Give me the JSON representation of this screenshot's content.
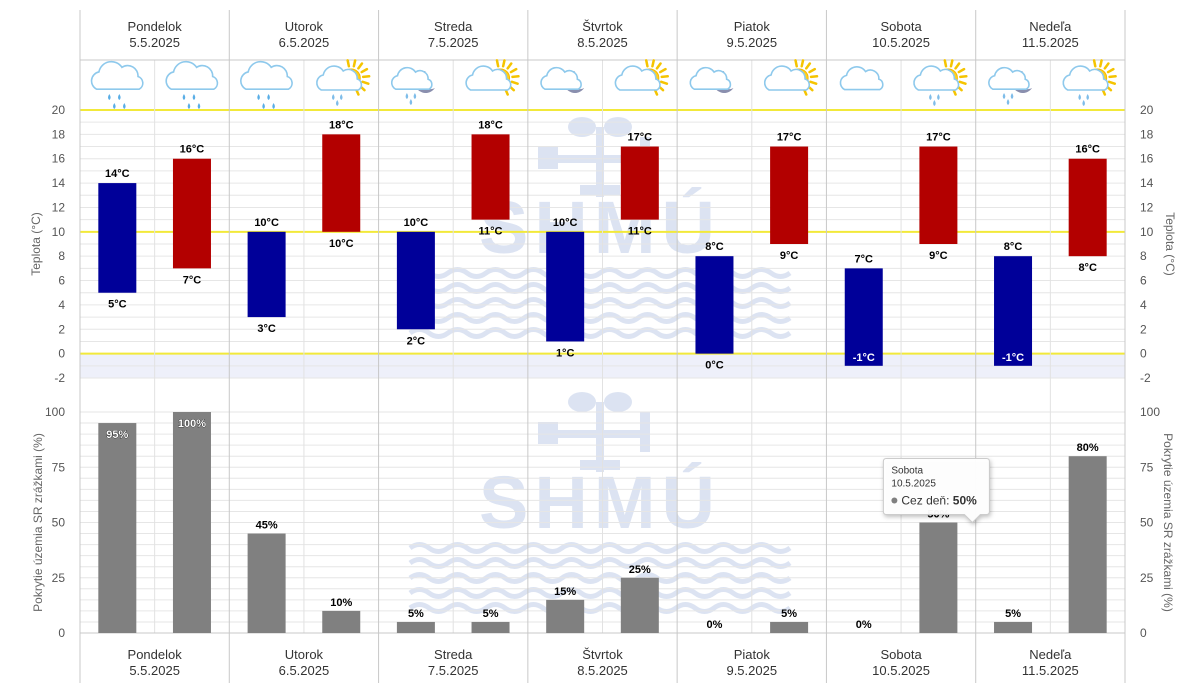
{
  "days": [
    {
      "name": "Pondelok",
      "date": "5.5.2025",
      "icon_night": "rain-cloud-icon",
      "icon_day": "rain-cloud-icon"
    },
    {
      "name": "Utorok",
      "date": "6.5.2025",
      "icon_night": "rain-cloud-icon",
      "icon_day": "sun-cloud-rain-icon"
    },
    {
      "name": "Streda",
      "date": "7.5.2025",
      "icon_night": "moon-cloud-rain-icon",
      "icon_day": "sun-cloud-icon"
    },
    {
      "name": "Štvrtok",
      "date": "8.5.2025",
      "icon_night": "moon-cloud-icon",
      "icon_day": "sun-cloud-icon"
    },
    {
      "name": "Piatok",
      "date": "9.5.2025",
      "icon_night": "moon-cloud-icon",
      "icon_day": "sun-cloud-icon"
    },
    {
      "name": "Sobota",
      "date": "10.5.2025",
      "icon_night": "cloud-icon",
      "icon_day": "sun-cloud-rain-icon"
    },
    {
      "name": "Nedeľa",
      "date": "11.5.2025",
      "icon_night": "moon-cloud-rain-icon",
      "icon_day": "sun-cloud-rain-icon"
    }
  ],
  "watermark": "SHMÚ",
  "colors": {
    "night_bar": "#000099",
    "day_bar": "#b30000",
    "precip_bar": "#808080",
    "yellow_line": "#f2e93a",
    "below_zero_band": "#eef0fa",
    "watermark": "#d6dff0",
    "grid": "#e6e6e6",
    "separator": "#c8c8c8"
  },
  "chart_data": [
    {
      "type": "bar",
      "name": "temperature",
      "ylabel": "Teplota (°C)",
      "ylim": [
        -2,
        20
      ],
      "yticks": [
        -2,
        0,
        2,
        4,
        6,
        8,
        10,
        12,
        14,
        16,
        18,
        20
      ],
      "highlight_lines": [
        0,
        10,
        20
      ],
      "unit": "°C",
      "series": [
        {
          "name": "night",
          "ranges": [
            [
              5,
              14
            ],
            [
              3,
              10
            ],
            [
              2,
              10
            ],
            [
              1,
              10
            ],
            [
              0,
              8
            ],
            [
              -1,
              7
            ],
            [
              -1,
              8
            ]
          ]
        },
        {
          "name": "day",
          "ranges": [
            [
              7,
              16
            ],
            [
              10,
              18
            ],
            [
              11,
              18
            ],
            [
              11,
              17
            ],
            [
              9,
              17
            ],
            [
              9,
              17
            ],
            [
              8,
              16
            ]
          ]
        }
      ]
    },
    {
      "type": "bar",
      "name": "precipitation",
      "ylabel": "Pokrytie územia SR zrážkami (%)",
      "ylim": [
        0,
        100
      ],
      "yticks": [
        0,
        25,
        50,
        75,
        100
      ],
      "unit": "%",
      "series": [
        {
          "name": "night",
          "values": [
            95,
            45,
            5,
            15,
            0,
            0,
            5
          ]
        },
        {
          "name": "day",
          "values": [
            100,
            10,
            5,
            25,
            5,
            50,
            80
          ]
        }
      ]
    }
  ],
  "tooltip": {
    "title": "Sobota",
    "date": "10.5.2025",
    "label": "Cez deň:",
    "value": "50%",
    "day_index": 5,
    "slot": "day"
  }
}
